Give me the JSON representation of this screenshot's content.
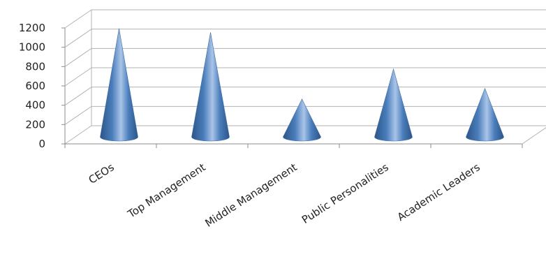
{
  "chart_data": {
    "type": "bar",
    "shape": "cone-3d",
    "categories": [
      "CEOs",
      "Top Management",
      "Middle Management",
      "Public Personalities",
      "Academic Leaders"
    ],
    "series": [
      {
        "values": [
          1180,
          1140,
          450,
          760,
          560
        ]
      }
    ],
    "yticks": [
      "0",
      "200",
      "400",
      "600",
      "800",
      "1000",
      "1200"
    ],
    "ylim": [
      0,
      1200
    ],
    "grid": true,
    "legend": "none",
    "colors": {
      "cone": "#4a7ebb",
      "cone_dark": "#2c5587",
      "cone_light": "#a9c4e8",
      "grid": "#b3b3b3",
      "axis": "#8c8c8c"
    }
  }
}
